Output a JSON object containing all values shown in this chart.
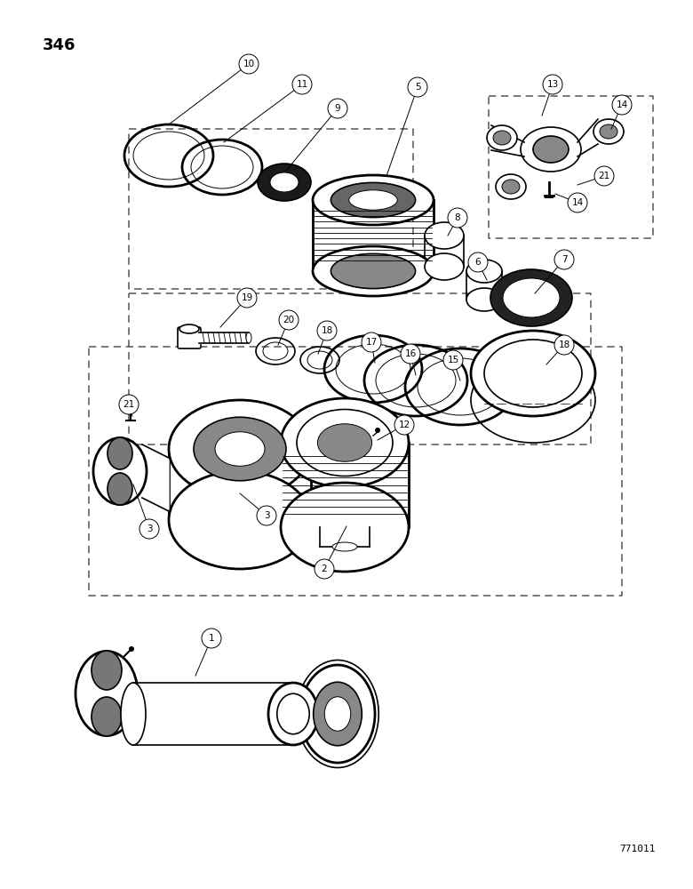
{
  "page_number": "346",
  "part_number": "771011",
  "bg": "#ffffff",
  "lc": "#000000",
  "figsize": [
    7.8,
    10.0
  ],
  "dpi": 100
}
